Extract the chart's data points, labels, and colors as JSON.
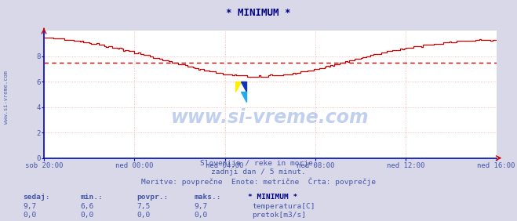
{
  "title": "* MINIMUM *",
  "bg_color": "#d8d8e8",
  "plot_bg_color": "#ffffff",
  "grid_color": "#ffaaaa",
  "axis_color": "#0000cc",
  "title_color": "#000088",
  "watermark": "www.si-vreme.com",
  "watermark_color": "#3366cc",
  "watermark_alpha": 0.3,
  "subtitle_lines": [
    "Slovenija / reke in morje.",
    "zadnji dan / 5 minut.",
    "Meritve: povprečne  Enote: metrične  Črta: povprečje"
  ],
  "legend_header": "* MINIMUM *",
  "legend_items": [
    {
      "label": "temperatura[C]",
      "color": "#cc0000"
    },
    {
      "label": "pretok[m3/s]",
      "color": "#00aa00"
    }
  ],
  "stats_headers": [
    "sedaj:",
    "min.:",
    "povpr.:",
    "maks.:"
  ],
  "stats_data": [
    [
      "9,7",
      "6,6",
      "7,5",
      "9,7"
    ],
    [
      "0,0",
      "0,0",
      "0,0",
      "0,0"
    ]
  ],
  "xticklabels": [
    "sob 20:00",
    "ned 00:00",
    "ned 04:00",
    "ned 08:00",
    "ned 12:00",
    "ned 16:00"
  ],
  "xtick_positions": [
    0,
    48,
    96,
    144,
    192,
    240
  ],
  "ylim": [
    0,
    10
  ],
  "yticks": [
    0,
    2,
    4,
    6,
    8
  ],
  "avg_line_value": 7.5,
  "avg_line_color": "#cc0000",
  "temp_line_color": "#cc0000",
  "flow_line_color": "#00aa00",
  "sidebar_text": "www.si-vreme.com",
  "sidebar_color": "#5566aa",
  "label_color": "#4455aa",
  "logo_colors": [
    "#ffff00",
    "#1144cc",
    "#22aaff"
  ]
}
